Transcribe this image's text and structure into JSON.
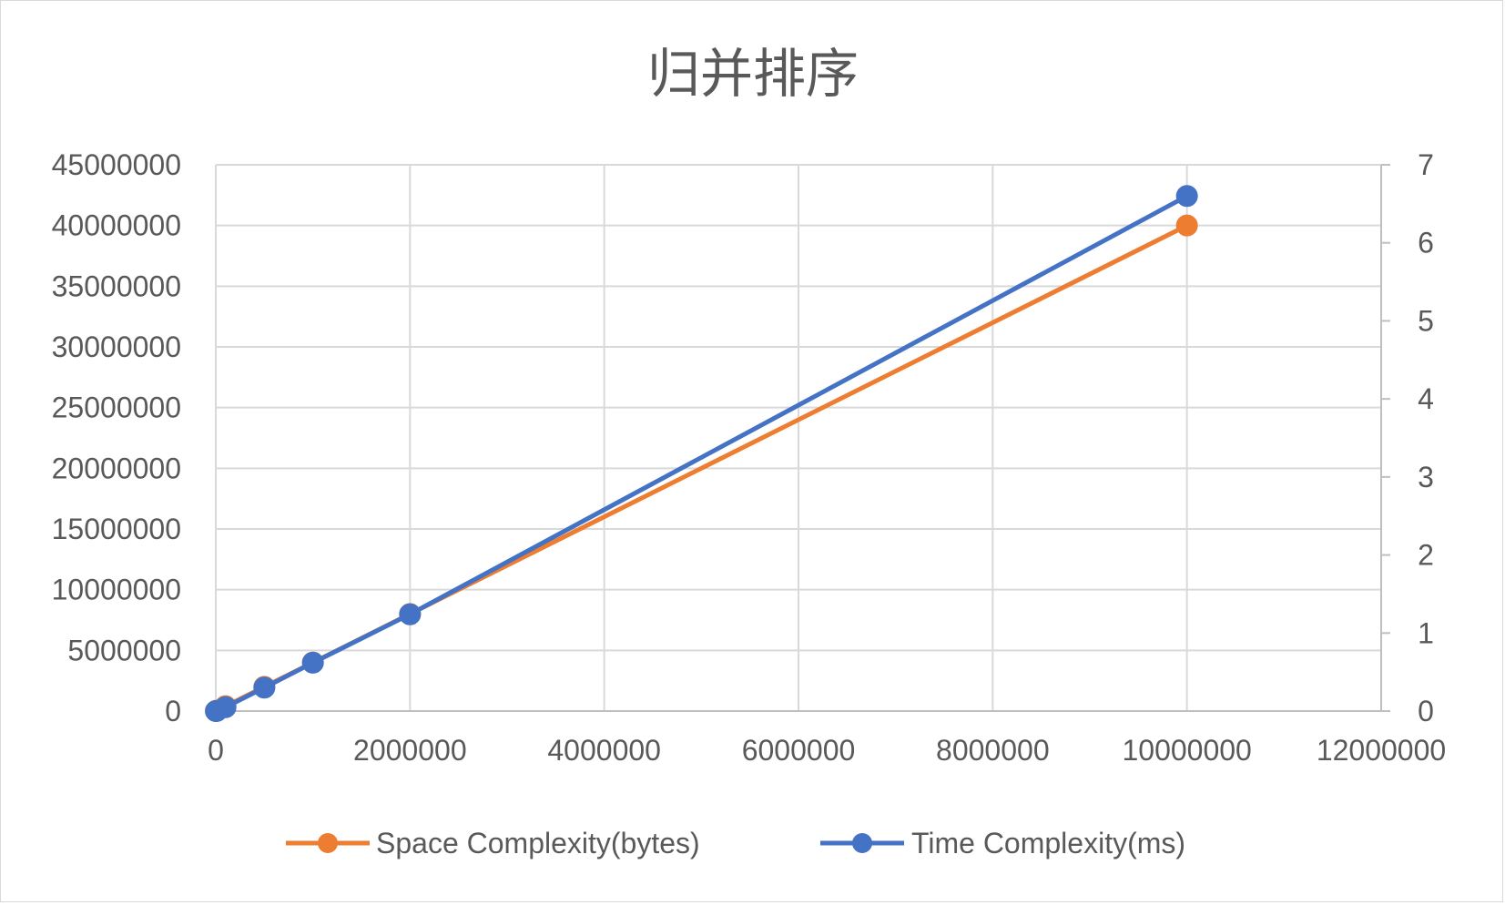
{
  "chart_data": {
    "type": "scatter",
    "title": "归并排序",
    "xlabel": "",
    "ylabel": "",
    "y2label": "",
    "xlim": [
      0,
      12000000
    ],
    "ylim": [
      0,
      45000000
    ],
    "y2lim": [
      0,
      7
    ],
    "grid": true,
    "legend_position": "bottom",
    "x_ticks": [
      "0",
      "2000000",
      "4000000",
      "6000000",
      "8000000",
      "10000000",
      "12000000"
    ],
    "y_ticks": [
      "0",
      "5000000",
      "10000000",
      "15000000",
      "20000000",
      "25000000",
      "30000000",
      "35000000",
      "40000000",
      "45000000"
    ],
    "y2_ticks": [
      "0",
      "1",
      "2",
      "3",
      "4",
      "5",
      "6",
      "7"
    ],
    "series": [
      {
        "name": "Space Complexity(bytes)",
        "axis": "left",
        "color": "#ED7D31",
        "x": [
          1000,
          10000,
          100000,
          500000,
          1000000,
          2000000,
          10000000
        ],
        "y": [
          4000,
          40000,
          400000,
          2000000,
          4000000,
          8000000,
          40000000
        ]
      },
      {
        "name": "Time Complexity(ms)",
        "axis": "right",
        "color": "#4472C4",
        "x": [
          1000,
          10000,
          100000,
          500000,
          1000000,
          2000000,
          10000000
        ],
        "y": [
          0.0,
          0.002,
          0.05,
          0.3,
          0.62,
          1.24,
          6.6
        ]
      }
    ]
  }
}
